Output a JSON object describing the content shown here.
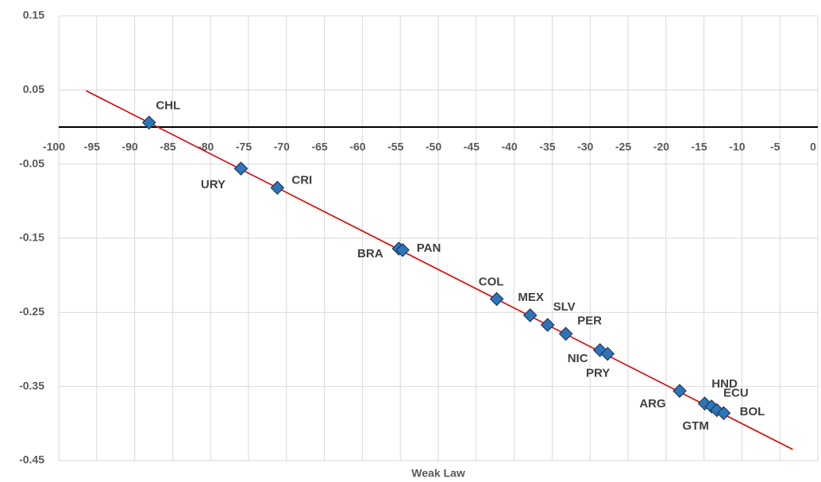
{
  "chart_data": {
    "type": "scatter",
    "x_label": "Weak Law",
    "xlim": [
      -100,
      0
    ],
    "ylim": [
      -0.45,
      0.15
    ],
    "xticks": [
      -100,
      -95,
      -90,
      -85,
      -80,
      -75,
      -70,
      -65,
      -60,
      -55,
      -50,
      -45,
      -40,
      -35,
      -30,
      -25,
      -20,
      -15,
      -10,
      -5,
      0
    ],
    "yticks": [
      0.15,
      0.05,
      -0.05,
      -0.15,
      -0.25,
      -0.35,
      -0.45
    ],
    "grid": true,
    "series": [
      {
        "color": "#2e75b6",
        "labels": [
          "CHL",
          "URY",
          "CRI",
          "BRA",
          "PAN",
          "COL",
          "MEX",
          "SLV",
          "PER",
          "NIC",
          "PRY",
          "ARG",
          "HND",
          "GTM",
          "ECU",
          "BOL"
        ],
        "x": [
          -88.1,
          -76.0,
          -71.2,
          -55.2,
          -54.7,
          -42.3,
          -37.9,
          -35.6,
          -33.2,
          -28.7,
          -27.7,
          -18.2,
          -14.9,
          -14.0,
          -13.3,
          -12.4
        ],
        "y": [
          0.006,
          -0.056,
          -0.082,
          -0.164,
          -0.166,
          -0.232,
          -0.254,
          -0.267,
          -0.279,
          -0.301,
          -0.306,
          -0.356,
          -0.373,
          -0.377,
          -0.382,
          -0.386
        ]
      }
    ],
    "trendline": {
      "color": "#e00000",
      "x": [
        -96.4,
        -3.3
      ],
      "y": [
        0.049,
        -0.435
      ]
    }
  }
}
